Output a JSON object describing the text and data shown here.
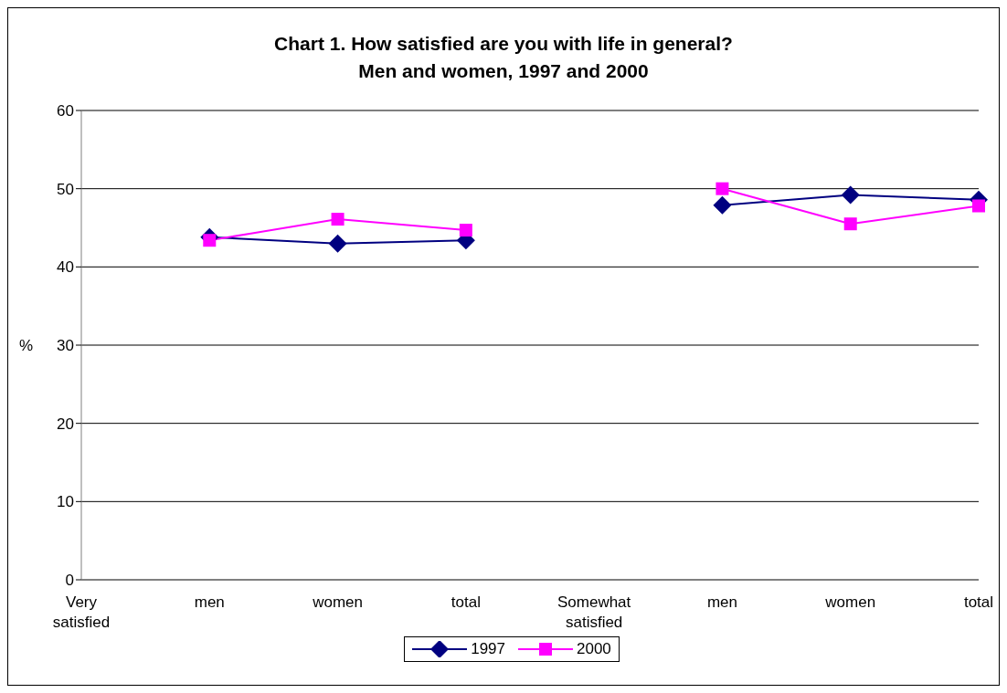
{
  "chart_data": {
    "type": "line",
    "title": "Chart 1. How satisfied are you with life in general?",
    "subtitle": "Men and women, 1997 and 2000",
    "ylabel": "%",
    "categories": [
      "Very satisfied",
      "men",
      "women",
      "total",
      "Somewhat satisfied",
      "men",
      "women",
      "total"
    ],
    "series": [
      {
        "name": "1997",
        "color": "#000080",
        "marker": "diamond",
        "values": [
          null,
          43.8,
          43.0,
          43.4,
          null,
          47.9,
          49.2,
          48.6
        ]
      },
      {
        "name": "2000",
        "color": "#ff00ff",
        "marker": "square",
        "values": [
          null,
          43.4,
          46.1,
          44.7,
          null,
          50.0,
          45.5,
          47.8
        ]
      }
    ],
    "ylim": [
      0,
      60
    ],
    "yticks": [
      0,
      10,
      20,
      30,
      40,
      50,
      60
    ],
    "grid": "y",
    "legend": "bottom"
  }
}
